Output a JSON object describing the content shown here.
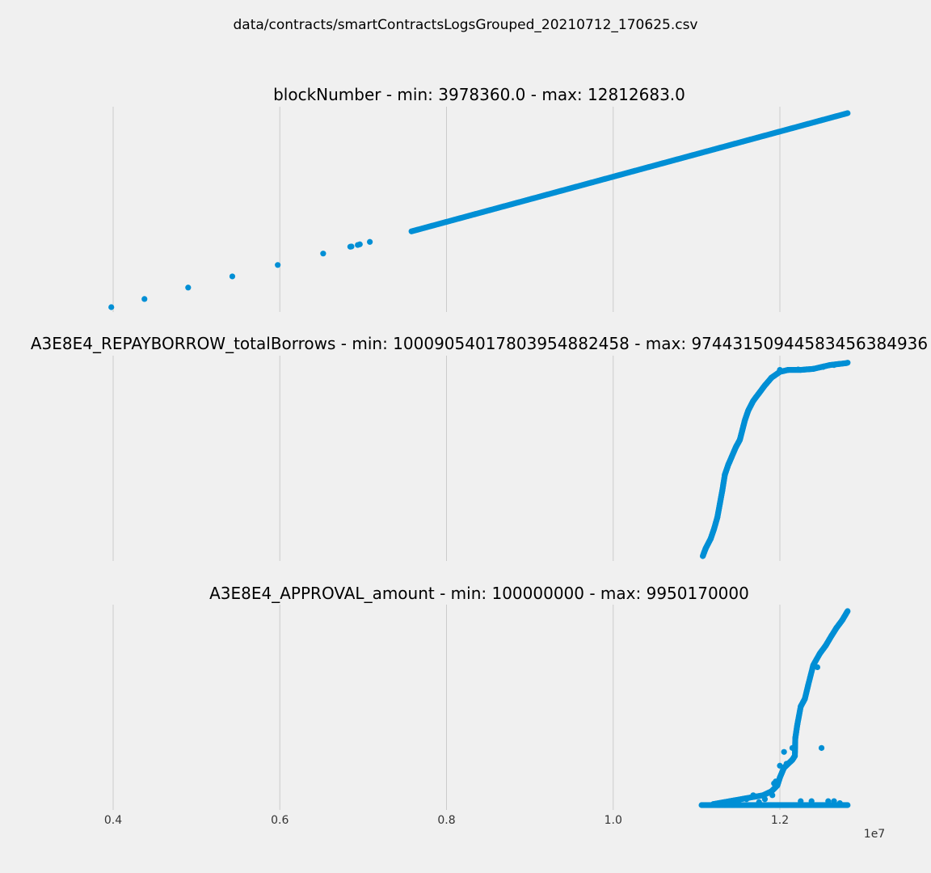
{
  "figure": {
    "suptitle": "data/contracts/smartContractsLogsGrouped_20210712_170625.csv",
    "x_multiplier": "1e7",
    "background": "#f0f0f0",
    "marker_color": "#008fd5"
  },
  "chart_data": [
    {
      "type": "scatter",
      "title": "blockNumber - min: 3978360.0 - max: 12812683.0",
      "xlabel": "",
      "ylabel": "",
      "xticks": [
        0.4,
        0.6,
        0.8,
        1.0,
        1.2
      ],
      "xlim": [
        0.3,
        1.32
      ],
      "ylim": [
        3978360,
        12812683
      ],
      "grid": "x-only",
      "show_xtick_labels": false,
      "points": [
        [
          0.3978,
          3978360
        ],
        [
          0.4376,
          4350000
        ],
        [
          0.49,
          4870000
        ],
        [
          0.543,
          5380000
        ],
        [
          0.5975,
          5900000
        ],
        [
          0.652,
          6420000
        ],
        [
          0.6845,
          6730000
        ],
        [
          0.686,
          6740000
        ],
        [
          0.6935,
          6810000
        ],
        [
          0.696,
          6840000
        ],
        [
          0.708,
          6950000
        ]
      ],
      "segments": [
        {
          "x": [
            0.758,
            1.2813
          ],
          "y": [
            7430000,
            12812683
          ]
        }
      ]
    },
    {
      "type": "scatter",
      "title": "A3E8E4_REPAYBORROW_totalBorrows - min: 10009054017803954882458 - max: 97443150944583456384936",
      "xlabel": "",
      "ylabel": "",
      "xticks": [
        0.4,
        0.6,
        0.8,
        1.0,
        1.2
      ],
      "xlim": [
        0.3,
        1.32
      ],
      "ylim": [
        0,
        1
      ],
      "grid": "x-only",
      "show_xtick_labels": false,
      "curve": [
        [
          1.1075,
          0.0
        ],
        [
          1.111,
          0.04
        ],
        [
          1.117,
          0.09
        ],
        [
          1.121,
          0.14
        ],
        [
          1.125,
          0.2
        ],
        [
          1.128,
          0.27
        ],
        [
          1.131,
          0.34
        ],
        [
          1.134,
          0.42
        ],
        [
          1.138,
          0.47
        ],
        [
          1.142,
          0.51
        ],
        [
          1.147,
          0.56
        ],
        [
          1.152,
          0.6
        ],
        [
          1.155,
          0.65
        ],
        [
          1.158,
          0.7
        ],
        [
          1.162,
          0.75
        ],
        [
          1.168,
          0.8
        ],
        [
          1.175,
          0.84
        ],
        [
          1.182,
          0.88
        ],
        [
          1.19,
          0.92
        ],
        [
          1.2,
          0.95
        ],
        [
          1.21,
          0.96
        ],
        [
          1.225,
          0.96
        ],
        [
          1.24,
          0.965
        ],
        [
          1.26,
          0.985
        ],
        [
          1.28,
          0.995
        ]
      ],
      "points": [
        [
          1.2,
          0.96
        ],
        [
          1.222,
          0.962
        ],
        [
          1.232,
          0.963
        ],
        [
          1.252,
          0.975
        ],
        [
          1.265,
          0.985
        ],
        [
          1.2775,
          0.994
        ],
        [
          1.2813,
          0.997
        ]
      ]
    },
    {
      "type": "scatter",
      "title": "A3E8E4_APPROVAL_amount - min: 100000000 - max: 9950170000",
      "xlabel": "",
      "ylabel": "",
      "xticks": [
        0.4,
        0.6,
        0.8,
        1.0,
        1.2
      ],
      "xlim": [
        0.3,
        1.32
      ],
      "ylim": [
        100000000,
        9950170000
      ],
      "grid": "x-only",
      "show_xtick_labels": true,
      "baseline": {
        "x": [
          1.106,
          1.2813
        ],
        "y": 100000000
      },
      "curve": [
        [
          1.12,
          150000000
        ],
        [
          1.14,
          300000000
        ],
        [
          1.16,
          450000000
        ],
        [
          1.18,
          600000000
        ],
        [
          1.19,
          800000000
        ],
        [
          1.197,
          1100000000
        ],
        [
          1.2,
          1500000000
        ],
        [
          1.205,
          2000000000
        ],
        [
          1.21,
          2200000000
        ],
        [
          1.215,
          2400000000
        ],
        [
          1.218,
          2600000000
        ],
        [
          1.2185,
          3500000000
        ],
        [
          1.221,
          4200000000
        ],
        [
          1.225,
          5100000000
        ],
        [
          1.23,
          5500000000
        ],
        [
          1.234,
          6200000000
        ],
        [
          1.24,
          7200000000
        ],
        [
          1.248,
          7800000000
        ],
        [
          1.255,
          8200000000
        ],
        [
          1.262,
          8700000000
        ],
        [
          1.268,
          9100000000
        ],
        [
          1.275,
          9500000000
        ],
        [
          1.2813,
          9950170000
        ]
      ],
      "points": [
        [
          1.175,
          250000000
        ],
        [
          1.182,
          400000000
        ],
        [
          1.191,
          600000000
        ],
        [
          1.195,
          1300000000
        ],
        [
          1.193,
          1200000000
        ],
        [
          1.2,
          2100000000
        ],
        [
          1.208,
          2200000000
        ],
        [
          1.215,
          3000000000
        ],
        [
          1.205,
          2800000000
        ],
        [
          1.245,
          7100000000
        ],
        [
          1.25,
          3000000000
        ],
        [
          1.238,
          300000000
        ],
        [
          1.225,
          300000000
        ],
        [
          1.258,
          300000000
        ],
        [
          1.265,
          300000000
        ],
        [
          1.272,
          200000000
        ],
        [
          1.15,
          200000000
        ],
        [
          1.16,
          400000000
        ],
        [
          1.168,
          600000000
        ]
      ]
    }
  ]
}
